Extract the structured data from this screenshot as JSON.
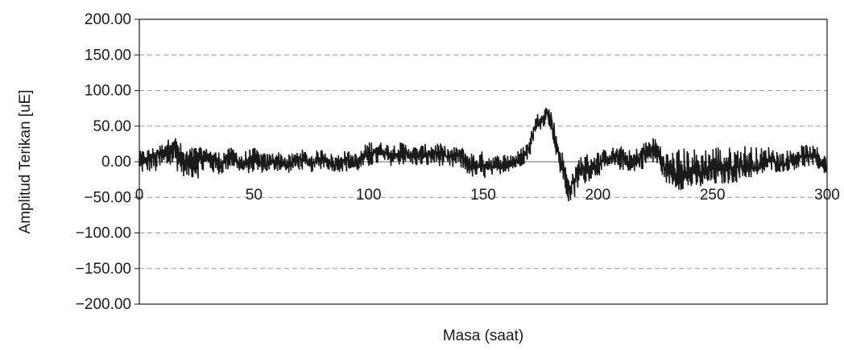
{
  "chart_data": {
    "type": "line",
    "title": "",
    "xlabel": "Masa (saat)",
    "ylabel": "Amplitud Terikan [uE]",
    "xlim": [
      0,
      300
    ],
    "ylim": [
      -200,
      200
    ],
    "x_ticks": [
      "0",
      "50",
      "100",
      "150",
      "200",
      "250",
      "300"
    ],
    "y_ticks": [
      "200.00",
      "150.00",
      "100.00",
      "50.00",
      "0.00",
      "−50.00",
      "−100.00",
      "−150.00",
      "−200.00"
    ],
    "grid": {
      "horizontal": true,
      "vertical": false,
      "style": "dashed"
    },
    "legend": "none",
    "series": [
      {
        "color": "#1a1a1a",
        "x": [
          0,
          5,
          10,
          15,
          20,
          25,
          30,
          35,
          40,
          45,
          50,
          55,
          60,
          65,
          70,
          75,
          80,
          85,
          90,
          95,
          100,
          105,
          110,
          115,
          120,
          125,
          130,
          135,
          140,
          145,
          150,
          155,
          160,
          165,
          170,
          172,
          175,
          178,
          180,
          182,
          185,
          187,
          190,
          192,
          195,
          200,
          205,
          210,
          215,
          220,
          225,
          230,
          235,
          240,
          245,
          250,
          255,
          260,
          265,
          270,
          275,
          280,
          285,
          290,
          295,
          300
        ],
        "y": [
          0,
          5,
          15,
          25,
          -10,
          8,
          10,
          -5,
          12,
          -8,
          5,
          -6,
          4,
          -7,
          6,
          -5,
          8,
          -6,
          5,
          -4,
          12,
          15,
          10,
          14,
          8,
          10,
          12,
          6,
          10,
          -10,
          -5,
          -8,
          -2,
          0,
          20,
          45,
          60,
          70,
          55,
          20,
          -10,
          -40,
          -25,
          -10,
          -10,
          -5,
          5,
          8,
          -5,
          12,
          20,
          -15,
          -20,
          -15,
          -18,
          -10,
          -12,
          -8,
          -5,
          -10,
          5,
          -5,
          4,
          10,
          5,
          -10
        ],
        "min_y": [
          -18,
          -15,
          -20,
          -10,
          -22,
          -25,
          -15,
          -20,
          -10,
          -15,
          -18,
          -15,
          -14,
          -16,
          -12,
          -15,
          -10,
          -14,
          -15,
          -14,
          -8,
          -5,
          -6,
          -5,
          -6,
          -8,
          -5,
          -12,
          -10,
          -22,
          -25,
          -20,
          -15,
          -10,
          2,
          30,
          45,
          55,
          40,
          -5,
          -30,
          -60,
          -55,
          -35,
          -30,
          -20,
          -15,
          -12,
          -15,
          -10,
          -5,
          -30,
          -40,
          -40,
          -38,
          -35,
          -32,
          -30,
          -25,
          -20,
          -15,
          -15,
          -12,
          -10,
          -8,
          -20
        ],
        "max_y": [
          15,
          20,
          25,
          38,
          20,
          22,
          18,
          15,
          20,
          15,
          20,
          12,
          15,
          10,
          18,
          14,
          18,
          10,
          16,
          12,
          30,
          28,
          25,
          28,
          22,
          25,
          28,
          20,
          22,
          15,
          15,
          10,
          12,
          15,
          30,
          60,
          75,
          80,
          70,
          40,
          10,
          -20,
          -10,
          10,
          12,
          15,
          20,
          22,
          15,
          28,
          35,
          15,
          20,
          20,
          18,
          25,
          22,
          20,
          25,
          20,
          22,
          15,
          18,
          25,
          22,
          15
        ]
      }
    ]
  }
}
